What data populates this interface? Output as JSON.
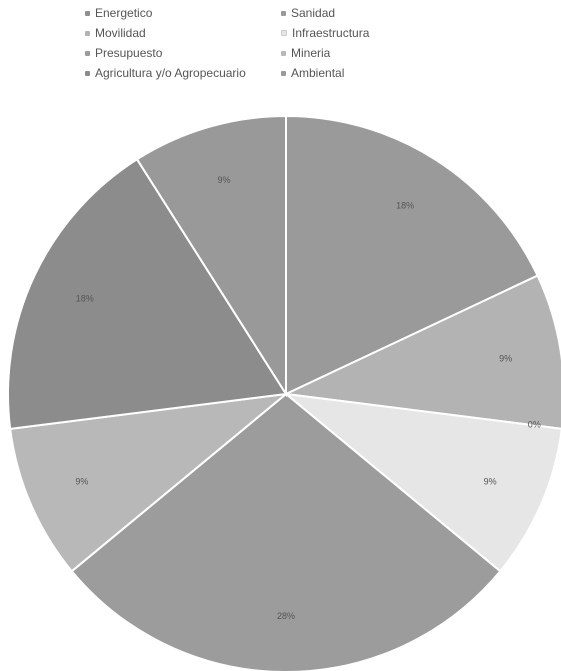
{
  "chart_data": {
    "type": "pie",
    "legend_position": "top",
    "categories": [
      "Energetico",
      "Sanidad",
      "Movilidad",
      "Infraestructura",
      "Presupuesto",
      "Mineria",
      "Agricultura y/o Agropecuario",
      "Ambiental"
    ],
    "legend": [
      {
        "label": "Energetico",
        "color": "#8f8f8f"
      },
      {
        "label": "Sanidad",
        "color": "#9a9a9a"
      },
      {
        "label": "Movilidad",
        "color": "#b3b3b3"
      },
      {
        "label": "Infraestructura",
        "color": "#e6e6e6"
      },
      {
        "label": "Presupuesto",
        "color": "#9c9c9c"
      },
      {
        "label": "Mineria",
        "color": "#b8b8b8"
      },
      {
        "label": "Agricultura y/o Agropecuario",
        "color": "#8c8c8c"
      },
      {
        "label": "Ambiental",
        "color": "#999999"
      }
    ],
    "slices": [
      {
        "value": 18,
        "label": "18%",
        "color": "#9a9a9a"
      },
      {
        "value": 9,
        "label": "9%",
        "color": "#b3b3b3"
      },
      {
        "value": 0,
        "label": "0%",
        "color": "#cfcfcf"
      },
      {
        "value": 9,
        "label": "9%",
        "color": "#e6e6e6"
      },
      {
        "value": 28,
        "label": "28%",
        "color": "#9c9c9c"
      },
      {
        "value": 9,
        "label": "9%",
        "color": "#b8b8b8"
      },
      {
        "value": 18,
        "label": "18%",
        "color": "#8c8c8c"
      },
      {
        "value": 9,
        "label": "9%",
        "color": "#999999"
      }
    ]
  }
}
